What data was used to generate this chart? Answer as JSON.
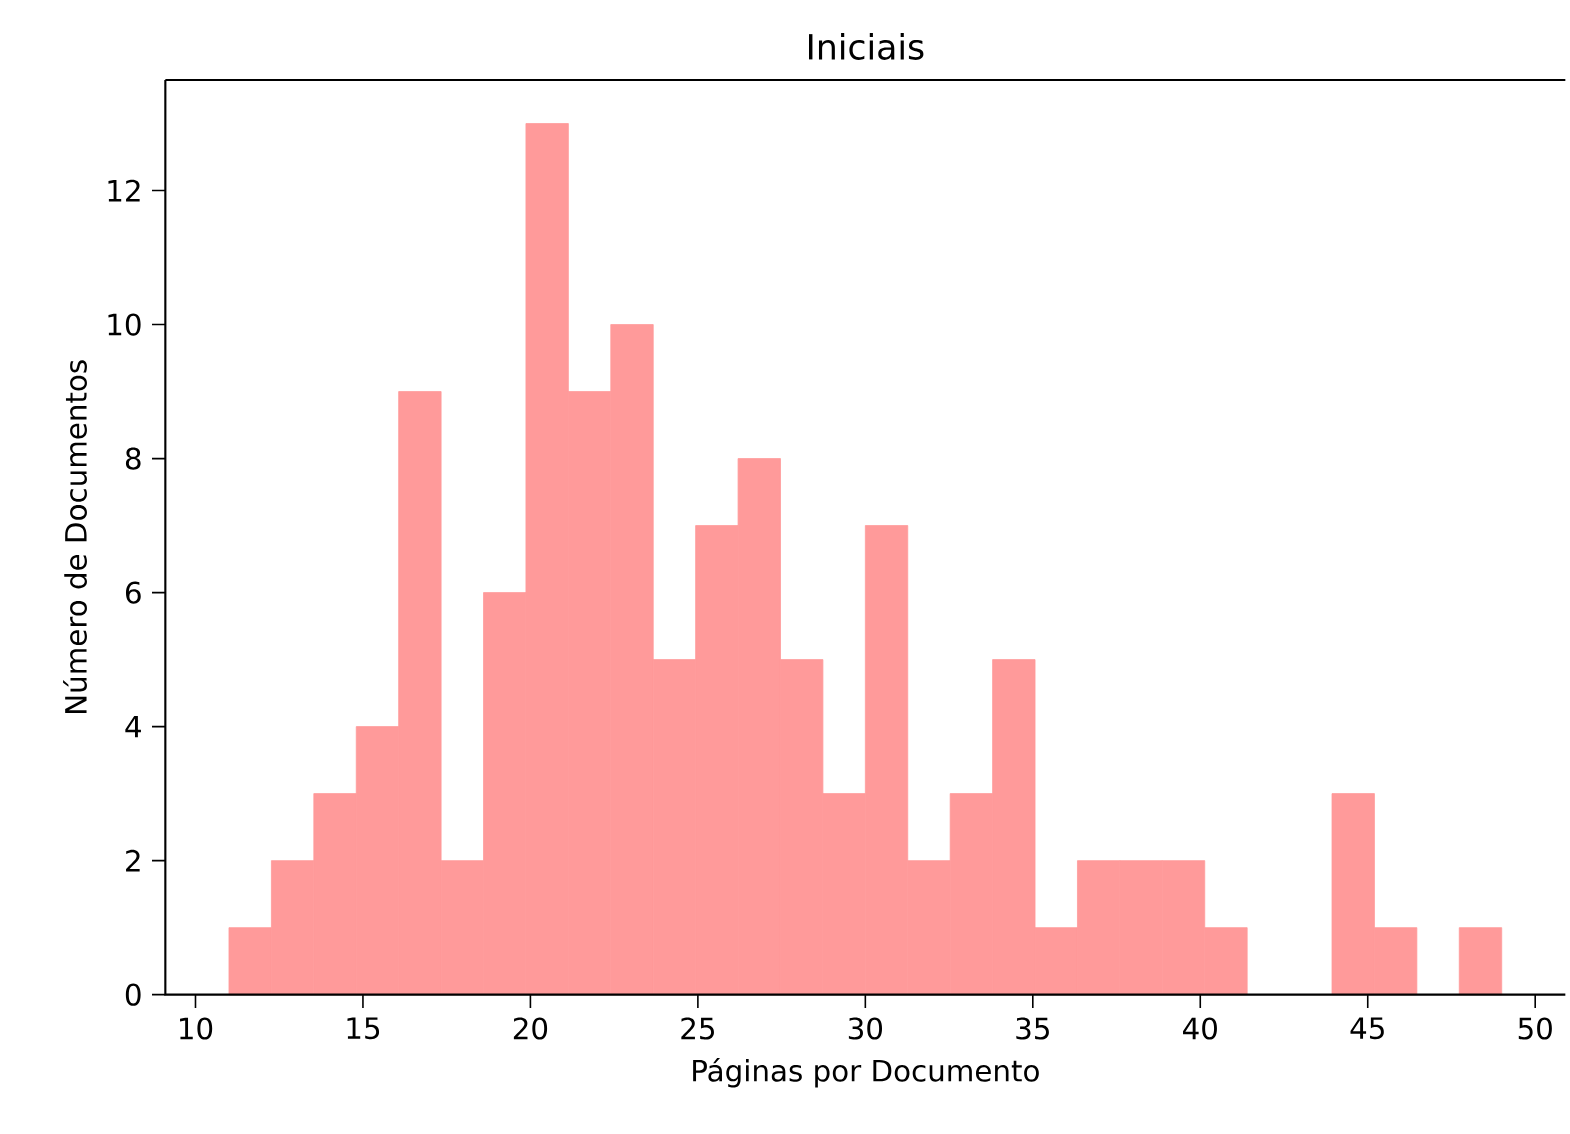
{
  "chart_data": {
    "type": "histogram",
    "title": "Iniciais",
    "xlabel": "Páginas por Documento",
    "ylabel": "Número de Documentos",
    "bins": [
      11,
      12.2667,
      13.5333,
      14.8,
      16.0667,
      17.3333,
      18.6,
      19.8667,
      21.1333,
      22.4,
      23.6667,
      24.9333,
      26.2,
      27.4667,
      28.7333,
      30,
      31.2667,
      32.5333,
      33.8,
      35.0667,
      36.3333,
      37.6,
      38.8667,
      40.1333,
      41.4,
      42.6667,
      43.9333,
      45.2,
      46.4667,
      47.7333,
      49
    ],
    "values": [
      1,
      2,
      3,
      4,
      9,
      2,
      6,
      13,
      9,
      10,
      5,
      7,
      8,
      5,
      3,
      7,
      2,
      3,
      5,
      1,
      2,
      2,
      2,
      1,
      0,
      0,
      3,
      1,
      0,
      1
    ],
    "color": "#ff9a9a",
    "xlim": [
      9.1,
      50.9
    ],
    "ylim": [
      0,
      13.65
    ],
    "xticks": [
      10,
      15,
      20,
      25,
      30,
      35,
      40,
      45,
      50
    ],
    "yticks": [
      0,
      2,
      4,
      6,
      8,
      10,
      12
    ],
    "grid": false
  }
}
